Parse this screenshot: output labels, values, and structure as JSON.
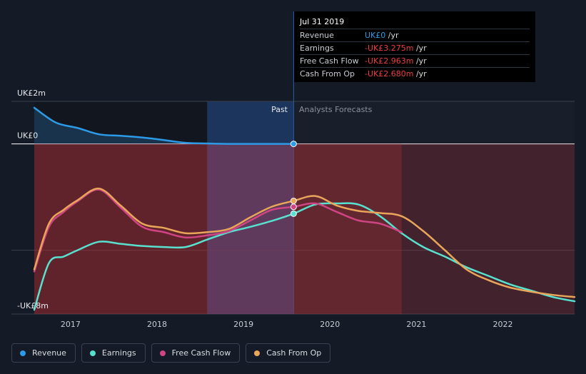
{
  "tooltip": {
    "date": "Jul 31 2019",
    "rows": [
      {
        "label": "Revenue",
        "value": "UK£0",
        "suffix": " /yr",
        "color": "#2d9ae6"
      },
      {
        "label": "Earnings",
        "value": "-UK£3.275m",
        "suffix": " /yr",
        "color": "#ee3d3d"
      },
      {
        "label": "Free Cash Flow",
        "value": "-UK£2.963m",
        "suffix": " /yr",
        "color": "#ee3d3d"
      },
      {
        "label": "Cash From Op",
        "value": "-UK£2.680m",
        "suffix": " /yr",
        "color": "#ee3d3d"
      }
    ]
  },
  "labels": {
    "past": "Past",
    "forecast": "Analysts Forecasts"
  },
  "colors": {
    "revenue": "#2d9ae6",
    "earnings": "#58e1cf",
    "free_cash_flow": "#cf4584",
    "cash_from_op": "#e9a55a",
    "negative_fill": "#a32f35",
    "past_highlight": "#1d3a66"
  },
  "legend": [
    {
      "label": "Revenue",
      "color": "#2d9ae6"
    },
    {
      "label": "Earnings",
      "color": "#58e1cf"
    },
    {
      "label": "Free Cash Flow",
      "color": "#cf4584"
    },
    {
      "label": "Cash From Op",
      "color": "#e9a55a"
    }
  ],
  "chart_data": {
    "type": "line",
    "y_tick_labels": [
      "UK£2m",
      "UK£0",
      "-UK£8m"
    ],
    "ylim": [
      -8,
      2
    ],
    "xlim": [
      2016.58,
      2022.83
    ],
    "x_tick_labels": [
      "2017",
      "2018",
      "2019",
      "2020",
      "2021",
      "2022"
    ],
    "x_ticks": [
      2017,
      2018,
      2019,
      2020,
      2021,
      2022
    ],
    "past_end": 2019.58,
    "highlight_start": 2018.58,
    "series": [
      {
        "name": "Revenue",
        "key": "revenue",
        "x": [
          2016.58,
          2016.83,
          2017.08,
          2017.33,
          2017.58,
          2017.83,
          2018.08,
          2018.33,
          2018.58,
          2018.83,
          2019.08,
          2019.33,
          2019.58
        ],
        "y": [
          1.7,
          1.0,
          0.75,
          0.45,
          0.38,
          0.3,
          0.18,
          0.05,
          0.02,
          0.0,
          0.0,
          0.0,
          0.0
        ]
      },
      {
        "name": "Earnings",
        "key": "earnings",
        "x": [
          2016.58,
          2016.75,
          2016.92,
          2017.08,
          2017.33,
          2017.58,
          2017.83,
          2018.08,
          2018.33,
          2018.58,
          2018.83,
          2019.08,
          2019.33,
          2019.58,
          2019.83,
          2020.08,
          2020.33,
          2020.58,
          2020.83,
          2021.08,
          2021.33,
          2021.58,
          2021.83,
          2022.08,
          2022.33,
          2022.58,
          2022.83
        ],
        "y": [
          -7.8,
          -5.6,
          -5.3,
          -5.0,
          -4.6,
          -4.7,
          -4.8,
          -4.85,
          -4.85,
          -4.5,
          -4.15,
          -3.9,
          -3.62,
          -3.28,
          -2.85,
          -2.8,
          -2.85,
          -3.4,
          -4.2,
          -4.85,
          -5.3,
          -5.8,
          -6.2,
          -6.6,
          -6.9,
          -7.2,
          -7.4
        ]
      },
      {
        "name": "Free Cash Flow",
        "key": "free_cash_flow",
        "x": [
          2016.58,
          2016.75,
          2016.92,
          2017.08,
          2017.33,
          2017.58,
          2017.83,
          2018.08,
          2018.33,
          2018.58,
          2018.83,
          2019.08,
          2019.33,
          2019.58,
          2019.83,
          2020.08,
          2020.33,
          2020.58,
          2020.83
        ],
        "y": [
          -6.0,
          -3.9,
          -3.2,
          -2.7,
          -2.15,
          -3.0,
          -3.9,
          -4.15,
          -4.4,
          -4.3,
          -4.1,
          -3.6,
          -3.1,
          -2.96,
          -2.8,
          -3.2,
          -3.6,
          -3.75,
          -4.15
        ]
      },
      {
        "name": "Cash From Op",
        "key": "cash_from_op",
        "x": [
          2016.58,
          2016.75,
          2016.92,
          2017.08,
          2017.33,
          2017.58,
          2017.83,
          2018.08,
          2018.33,
          2018.58,
          2018.83,
          2019.08,
          2019.33,
          2019.58,
          2019.83,
          2020.08,
          2020.33,
          2020.58,
          2020.83,
          2021.08,
          2021.33,
          2021.58,
          2021.83,
          2022.08,
          2022.33,
          2022.58,
          2022.83
        ],
        "y": [
          -5.9,
          -3.75,
          -3.1,
          -2.65,
          -2.1,
          -2.9,
          -3.75,
          -3.95,
          -4.2,
          -4.15,
          -4.0,
          -3.45,
          -2.95,
          -2.68,
          -2.45,
          -2.9,
          -3.15,
          -3.25,
          -3.4,
          -4.1,
          -5.0,
          -5.9,
          -6.4,
          -6.75,
          -6.95,
          -7.1,
          -7.2
        ]
      }
    ]
  }
}
